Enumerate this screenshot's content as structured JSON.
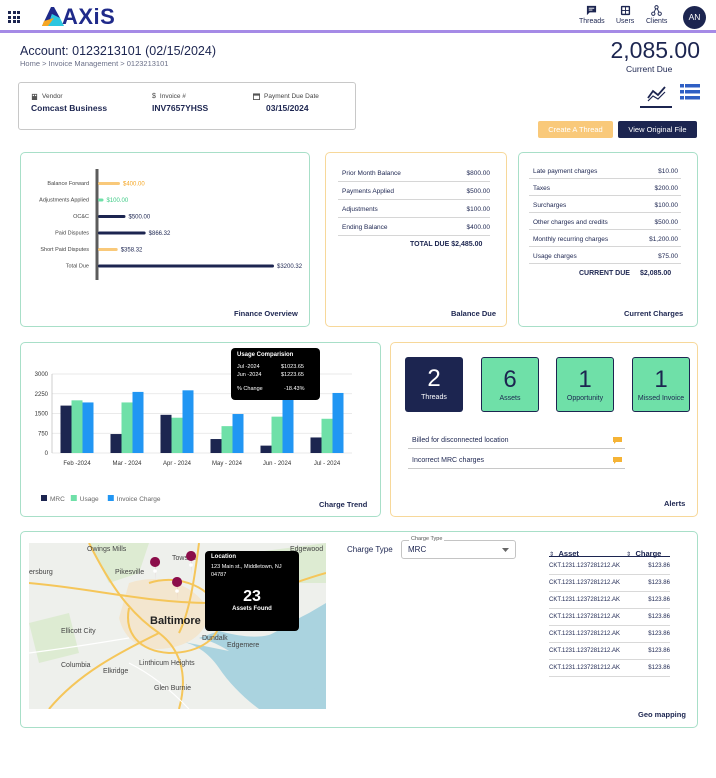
{
  "app": {
    "logo": "AXiS",
    "nav": [
      {
        "label": "Threads",
        "icon": "chat-icon"
      },
      {
        "label": "Users",
        "icon": "users-grid-icon"
      },
      {
        "label": "Clients",
        "icon": "clients-network-icon"
      }
    ],
    "avatar_initials": "AN"
  },
  "header": {
    "account_title": "Account: 0123213101 (02/15/2024)",
    "breadcrumb": "Home > Invoice Management > 0123213101",
    "current_due_amount": "2,085.00",
    "current_due_label": "Current Due"
  },
  "vendor": {
    "vendor_label": "Vendor",
    "vendor_value": "Comcast Business",
    "invoice_label": "Invoice #",
    "invoice_value": "INV7657YHSS",
    "due_date_label": "Payment Due Date",
    "due_date_value": "03/15/2024"
  },
  "actions": {
    "create_thread": "Create A Thread",
    "view_original": "View Original File"
  },
  "finance_overview": {
    "title": "Finance Overview",
    "chart_data": {
      "type": "bar",
      "orientation": "horizontal",
      "categories": [
        "Balance Forward",
        "Adjustments Applied",
        "OC&C",
        "Paid Disputes",
        "Short Paid Disputes",
        "Total Due"
      ],
      "values": [
        400,
        100,
        500,
        866.32,
        358.32,
        3200.32
      ],
      "value_labels": [
        "$400.00",
        "$100.00",
        "$500.00",
        "$866.32",
        "$358.32",
        "$3200.32"
      ],
      "colors": [
        "#f9c97a",
        "#6fe0a8",
        "#1c2550",
        "#1c2550",
        "#f9c97a",
        "#1c2550"
      ],
      "label_colors": [
        "#f5a623",
        "#3ccb85",
        "#1c2550",
        "#1c2550",
        "#1c2550",
        "#1c2550"
      ],
      "xlim": [
        0,
        3200.32
      ]
    }
  },
  "balance_due": {
    "title": "Balance Due",
    "rows": [
      {
        "label": "Prior Month Balance",
        "value": "$800.00"
      },
      {
        "label": "Payments Applied",
        "value": "$500.00"
      },
      {
        "label": "Adjustments",
        "value": "$100.00"
      },
      {
        "label": "Ending Balance",
        "value": "$400.00"
      }
    ],
    "total": "TOTAL DUE $2,485.00"
  },
  "current_charges": {
    "title": "Current Charges",
    "rows": [
      {
        "label": "Late payment charges",
        "value": "$10.00"
      },
      {
        "label": "Taxes",
        "value": "$200.00"
      },
      {
        "label": "Surcharges",
        "value": "$100.00"
      },
      {
        "label": "Other charges and credits",
        "value": "$500.00"
      },
      {
        "label": "Monthly recurring charges",
        "value": "$1,200.00"
      },
      {
        "label": "Usage charges",
        "value": "$75.00"
      }
    ],
    "total_label": "CURRENT DUE",
    "total_value": "$2,085.00"
  },
  "charge_trend": {
    "title": "Charge Trend",
    "tooltip": {
      "title": "Usage Comparision",
      "rows": [
        {
          "label": "Jul -2024",
          "value": "$1023.65"
        },
        {
          "label": "Jun -2024",
          "value": "$1223.65"
        },
        {
          "label": "% Change",
          "value": "-18.43%"
        }
      ]
    },
    "chart_data": {
      "type": "bar",
      "categories": [
        "Feb -2024",
        "Mar - 2024",
        "Apr - 2024",
        "May - 2024",
        "Jun - 2024",
        "Jul - 2024"
      ],
      "series": [
        {
          "name": "MRC",
          "color": "#1c2550",
          "values": [
            1800,
            720,
            1450,
            530,
            280,
            590
          ]
        },
        {
          "name": "Usage",
          "color": "#6fe0a8",
          "values": [
            2000,
            1920,
            1340,
            1020,
            1380,
            1300
          ]
        },
        {
          "name": "Invoice Charge",
          "color": "#2196f3",
          "values": [
            1920,
            2320,
            2380,
            1480,
            2050,
            2280
          ]
        }
      ],
      "yticks": [
        0,
        750,
        1500,
        2250,
        3000
      ],
      "ylim": [
        0,
        3000
      ],
      "legend_position": "bottom-left",
      "grid": true
    }
  },
  "alerts": {
    "title": "Alerts",
    "tiles": [
      {
        "count": "2",
        "label": "Threads",
        "style": "dark"
      },
      {
        "count": "6",
        "label": "Assets",
        "style": "green"
      },
      {
        "count": "1",
        "label": "Opportunity",
        "style": "green"
      },
      {
        "count": "1",
        "label": "Missed Invoice",
        "style": "green"
      }
    ],
    "items": [
      "Billed for disconnected location",
      "Incorrect MRC charges"
    ]
  },
  "geo": {
    "title": "Geo mapping",
    "map_labels": [
      "Owings Mills",
      "Towson",
      "Edgewood",
      "ersburg",
      "Pikesville",
      "Baltimore",
      "Ellicott City",
      "Dundalk",
      "Edgemere",
      "Columbia",
      "Elkridge",
      "Linthicum Heights",
      "Glen Burnie"
    ],
    "popup": {
      "title": "Location",
      "address": "123 Main st., Middletown, NJ 04787",
      "count": "23",
      "count_label": "Assets Found"
    },
    "charge_type_label": "Charge Type",
    "charge_type_field_label": "Charge Type",
    "charge_type_value": "MRC",
    "table": {
      "col_asset": "Asset",
      "col_charge": "Charge",
      "rows": [
        {
          "asset": "CKT.1231.1237281212.AK",
          "charge": "$123.86"
        },
        {
          "asset": "CKT.1231.1237281212.AK",
          "charge": "$123.86"
        },
        {
          "asset": "CKT.1231.1237281212.AK",
          "charge": "$123.86"
        },
        {
          "asset": "CKT.1231.1237281212.AK",
          "charge": "$123.86"
        },
        {
          "asset": "CKT.1231.1237281212.AK",
          "charge": "$123.86"
        },
        {
          "asset": "CKT.1231.1237281212.AK",
          "charge": "$123.86"
        },
        {
          "asset": "CKT.1231.1237281212.AK",
          "charge": "$123.86"
        }
      ]
    }
  }
}
